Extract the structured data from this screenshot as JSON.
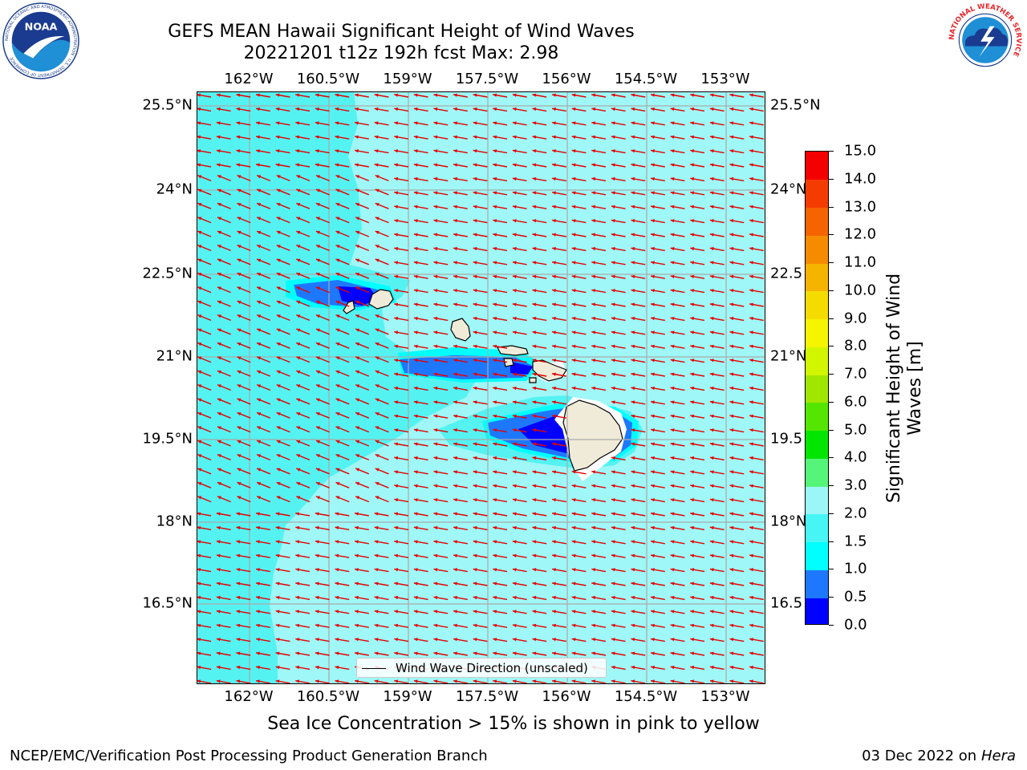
{
  "title": {
    "line1": "GEFS MEAN Hawaii Significant Height of Wind Waves",
    "line2": "20221201 t12z 192h fcst   Max: 2.98"
  },
  "lon_ticks": [
    "162°W",
    "160.5°W",
    "159°W",
    "157.5°W",
    "156°W",
    "154.5°W",
    "153°W"
  ],
  "lat_ticks": [
    "25.5°N",
    "24°N",
    "22.5°N",
    "21°N",
    "19.5°N",
    "18°N",
    "16.5°N"
  ],
  "right_lat_ticks": [
    "25.5°N",
    "24°N",
    "22.5",
    "21°N",
    "19.5",
    "18°N",
    "16.5"
  ],
  "legend": {
    "label": "Wind Wave Direction (unscaled)"
  },
  "colorbar": {
    "title_line1": "Significant Height of Wind",
    "title_line2": "Waves [m]",
    "levels": [
      "0.0",
      "0.5",
      "1.0",
      "1.5",
      "2.0",
      "3.0",
      "4.0",
      "5.0",
      "6.0",
      "7.0",
      "8.0",
      "9.0",
      "10.0",
      "11.0",
      "12.0",
      "13.0",
      "14.0",
      "15.0"
    ],
    "colors": [
      "#0000ff",
      "#1e78ff",
      "#00ffff",
      "#48f5f5",
      "#9bf7f7",
      "#55f57a",
      "#00e600",
      "#54e600",
      "#a0e600",
      "#d2f500",
      "#f5f500",
      "#f5dc00",
      "#f5b400",
      "#f58c00",
      "#f56400",
      "#f53c00",
      "#f50000"
    ]
  },
  "map": {
    "ocean_color": "#9ff7f7",
    "swell_color": "#55f2f2",
    "low_wave_color": "#1e78ff",
    "lowest_wave_color": "#0000ff",
    "land_color": "#f0ebd8",
    "arrow_color": "#e60000",
    "arrow_direction": "west-southwest"
  },
  "footnote": "Sea Ice Concentration > 15% is shown in pink to yellow",
  "credit_left": "NCEP/EMC/Verification Post Processing Product Generation Branch",
  "credit_right_prefix": "03 Dec 2022 on",
  "credit_right_host": "Hera",
  "logos": {
    "noaa": {
      "text": "NOAA",
      "ring_text": "NATIONAL OCEANIC AND ATMOSPHERIC ADMINISTRATION · U.S. DEPARTMENT OF COMMERCE"
    },
    "nws": {
      "ring_text": "NATIONAL WEATHER SERVICE"
    }
  }
}
